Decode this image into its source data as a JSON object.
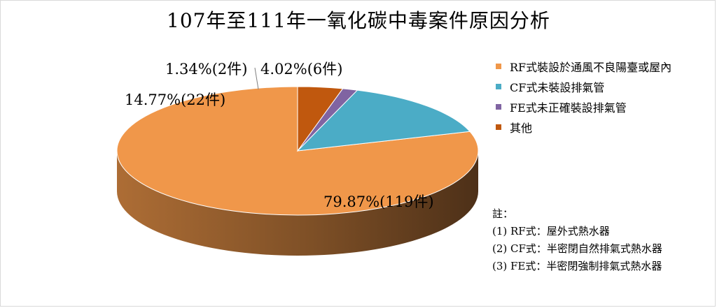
{
  "chart_data": {
    "type": "pie",
    "title": "107年至111年一氧化碳中毒案件原因分析",
    "slices": [
      {
        "name": "RF式裝設於通風不良陽臺或屋內",
        "percent": 79.87,
        "count": 119,
        "label": "79.87%(119件)",
        "color": "#F0974A"
      },
      {
        "name": "CF式未裝設排氣管",
        "percent": 14.77,
        "count": 22,
        "label": "14.77%(22件)",
        "color": "#4BACC6"
      },
      {
        "name": "FE式未正確裝設排氣管",
        "percent": 1.34,
        "count": 2,
        "label": "1.34%(2件)",
        "color": "#8064A2"
      },
      {
        "name": "其他",
        "percent": 4.02,
        "count": 6,
        "label": "4.02%(6件)",
        "color": "#C0580E"
      }
    ],
    "legend_position": "right"
  },
  "notes": {
    "heading": "註：",
    "lines": [
      "(1) RF式：屋外式熱水器",
      "(2) CF式：半密閉自然排氣式熱水器",
      "(3) FE式：半密閉強制排氣式熱水器"
    ]
  }
}
